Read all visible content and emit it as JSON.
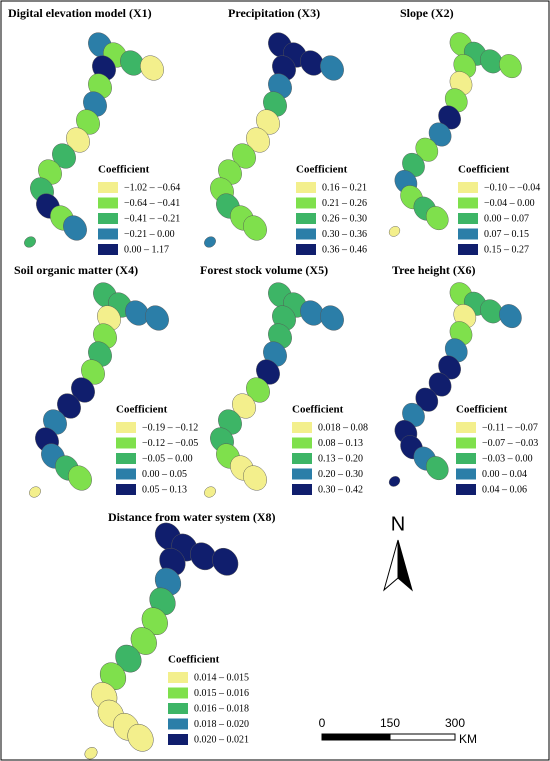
{
  "panels": [
    {
      "title": "Digital elevation model (X1)",
      "legend_title": "Coefficient",
      "legend": [
        {
          "label": "−1.02 – −0.64",
          "color": "#f3ef8c"
        },
        {
          "label": "−0.64 – −0.41",
          "color": "#7fe04c"
        },
        {
          "label": "−0.41 – −0.21",
          "color": "#3db566"
        },
        {
          "label": "−0.21 – 0.00",
          "color": "#2b7ea8"
        },
        {
          "label": "0.00 – 1.17",
          "color": "#101e6d"
        }
      ]
    },
    {
      "title": "Precipitation (X3)",
      "legend_title": "Coefficient",
      "legend": [
        {
          "label": "0.16 – 0.21",
          "color": "#f3ef8c"
        },
        {
          "label": "0.21 – 0.26",
          "color": "#7fe04c"
        },
        {
          "label": "0.26 – 0.30",
          "color": "#3db566"
        },
        {
          "label": "0.30 – 0.36",
          "color": "#2b7ea8"
        },
        {
          "label": "0.36 – 0.46",
          "color": "#101e6d"
        }
      ]
    },
    {
      "title": "Slope (X2)",
      "legend_title": "Coefficient",
      "legend": [
        {
          "label": "−0.10 – −0.04",
          "color": "#f3ef8c"
        },
        {
          "label": "−0.04 – 0.00",
          "color": "#7fe04c"
        },
        {
          "label": "0.00 – 0.07",
          "color": "#3db566"
        },
        {
          "label": "0.07 – 0.15",
          "color": "#2b7ea8"
        },
        {
          "label": "0.15 – 0.27",
          "color": "#101e6d"
        }
      ]
    },
    {
      "title": "Soil organic matter (X4)",
      "legend_title": "Coefficient",
      "legend": [
        {
          "label": "−0.19 – −0.12",
          "color": "#f3ef8c"
        },
        {
          "label": "−0.12 – −0.05",
          "color": "#7fe04c"
        },
        {
          "label": "−0.05 – 0.00",
          "color": "#3db566"
        },
        {
          "label": "0.00 – 0.05",
          "color": "#2b7ea8"
        },
        {
          "label": "0.05 – 0.13",
          "color": "#101e6d"
        }
      ]
    },
    {
      "title": "Forest stock volume (X5)",
      "legend_title": "Coefficient",
      "legend": [
        {
          "label": "0.018 – 0.08",
          "color": "#f3ef8c"
        },
        {
          "label": "0.08 – 0.13",
          "color": "#7fe04c"
        },
        {
          "label": "0.13 – 0.20",
          "color": "#3db566"
        },
        {
          "label": "0.20 – 0.30",
          "color": "#2b7ea8"
        },
        {
          "label": "0.30 – 0.42",
          "color": "#101e6d"
        }
      ]
    },
    {
      "title": "Tree height (X6)",
      "legend_title": "Coefficient",
      "legend": [
        {
          "label": "−0.11 – −0.07",
          "color": "#f3ef8c"
        },
        {
          "label": "−0.07 – −0.03",
          "color": "#7fe04c"
        },
        {
          "label": "−0.03 – 0.00",
          "color": "#3db566"
        },
        {
          "label": "0.00 – 0.04",
          "color": "#2b7ea8"
        },
        {
          "label": "0.04 – 0.06",
          "color": "#101e6d"
        }
      ]
    },
    {
      "title": "Distance from water system (X8)",
      "legend_title": "Coefficient",
      "legend": [
        {
          "label": "0.014 – 0.015",
          "color": "#f3ef8c"
        },
        {
          "label": "0.015 – 0.016",
          "color": "#7fe04c"
        },
        {
          "label": "0.016 – 0.018",
          "color": "#3db566"
        },
        {
          "label": "0.018 – 0.020",
          "color": "#2b7ea8"
        },
        {
          "label": "0.020 – 0.021",
          "color": "#101e6d"
        }
      ]
    }
  ],
  "north_arrow": {
    "label": "N"
  },
  "scale_bar": {
    "ticks": [
      0,
      150,
      300
    ],
    "unit": "KM"
  }
}
